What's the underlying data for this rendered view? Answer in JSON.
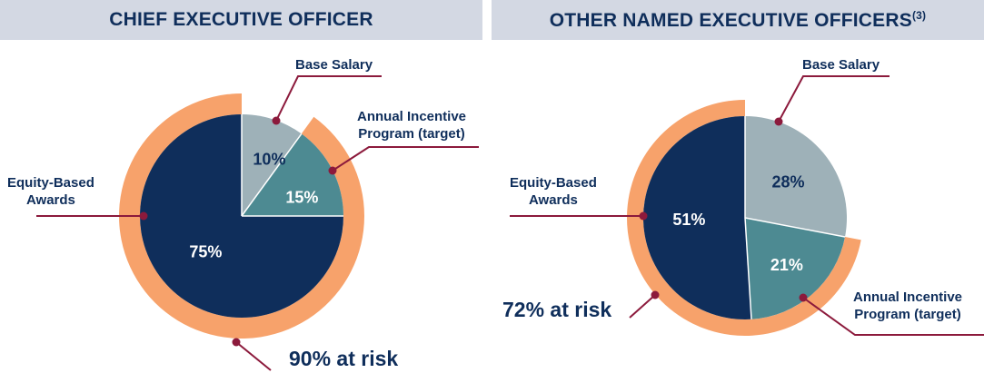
{
  "chart_data": [
    {
      "type": "pie",
      "title": "CHIEF EXECUTIVE OFFICER",
      "slices": [
        {
          "name": "Base Salary",
          "value": 10,
          "label": "10%",
          "color": "#9eb1b8"
        },
        {
          "name": "Annual Incentive Program (target)",
          "value": 15,
          "label": "15%",
          "color": "#4d8a92"
        },
        {
          "name": "Equity-Based Awards",
          "value": 75,
          "label": "75%",
          "color": "#0f2e5b"
        }
      ],
      "callouts": {
        "base": "Base Salary",
        "annual_line1": "Annual Incentive",
        "annual_line2": "Program (target)",
        "equity_line1": "Equity-Based",
        "equity_line2": "Awards"
      },
      "at_risk": {
        "value": 90,
        "label": "90% at risk",
        "color": "#f7a26b"
      }
    },
    {
      "type": "pie",
      "title": "OTHER NAMED EXECUTIVE OFFICERS",
      "title_note": "(3)",
      "slices": [
        {
          "name": "Base Salary",
          "value": 28,
          "label": "28%",
          "color": "#9eb1b8"
        },
        {
          "name": "Annual Incentive Program (target)",
          "value": 21,
          "label": "21%",
          "color": "#4d8a92"
        },
        {
          "name": "Equity-Based Awards",
          "value": 51,
          "label": "51%",
          "color": "#0f2e5b"
        }
      ],
      "callouts": {
        "base": "Base Salary",
        "annual_line1": "Annual Incentive",
        "annual_line2": "Program (target)",
        "equity_line1": "Equity-Based",
        "equity_line2": "Awards"
      },
      "at_risk": {
        "value": 72,
        "label": "72% at risk",
        "color": "#f7a26b"
      }
    }
  ],
  "colors": {
    "header_bg": "#d3d8e3",
    "header_text": "#0f2e5b",
    "leader": "#8c1a3c",
    "text": "#0f2e5b"
  }
}
